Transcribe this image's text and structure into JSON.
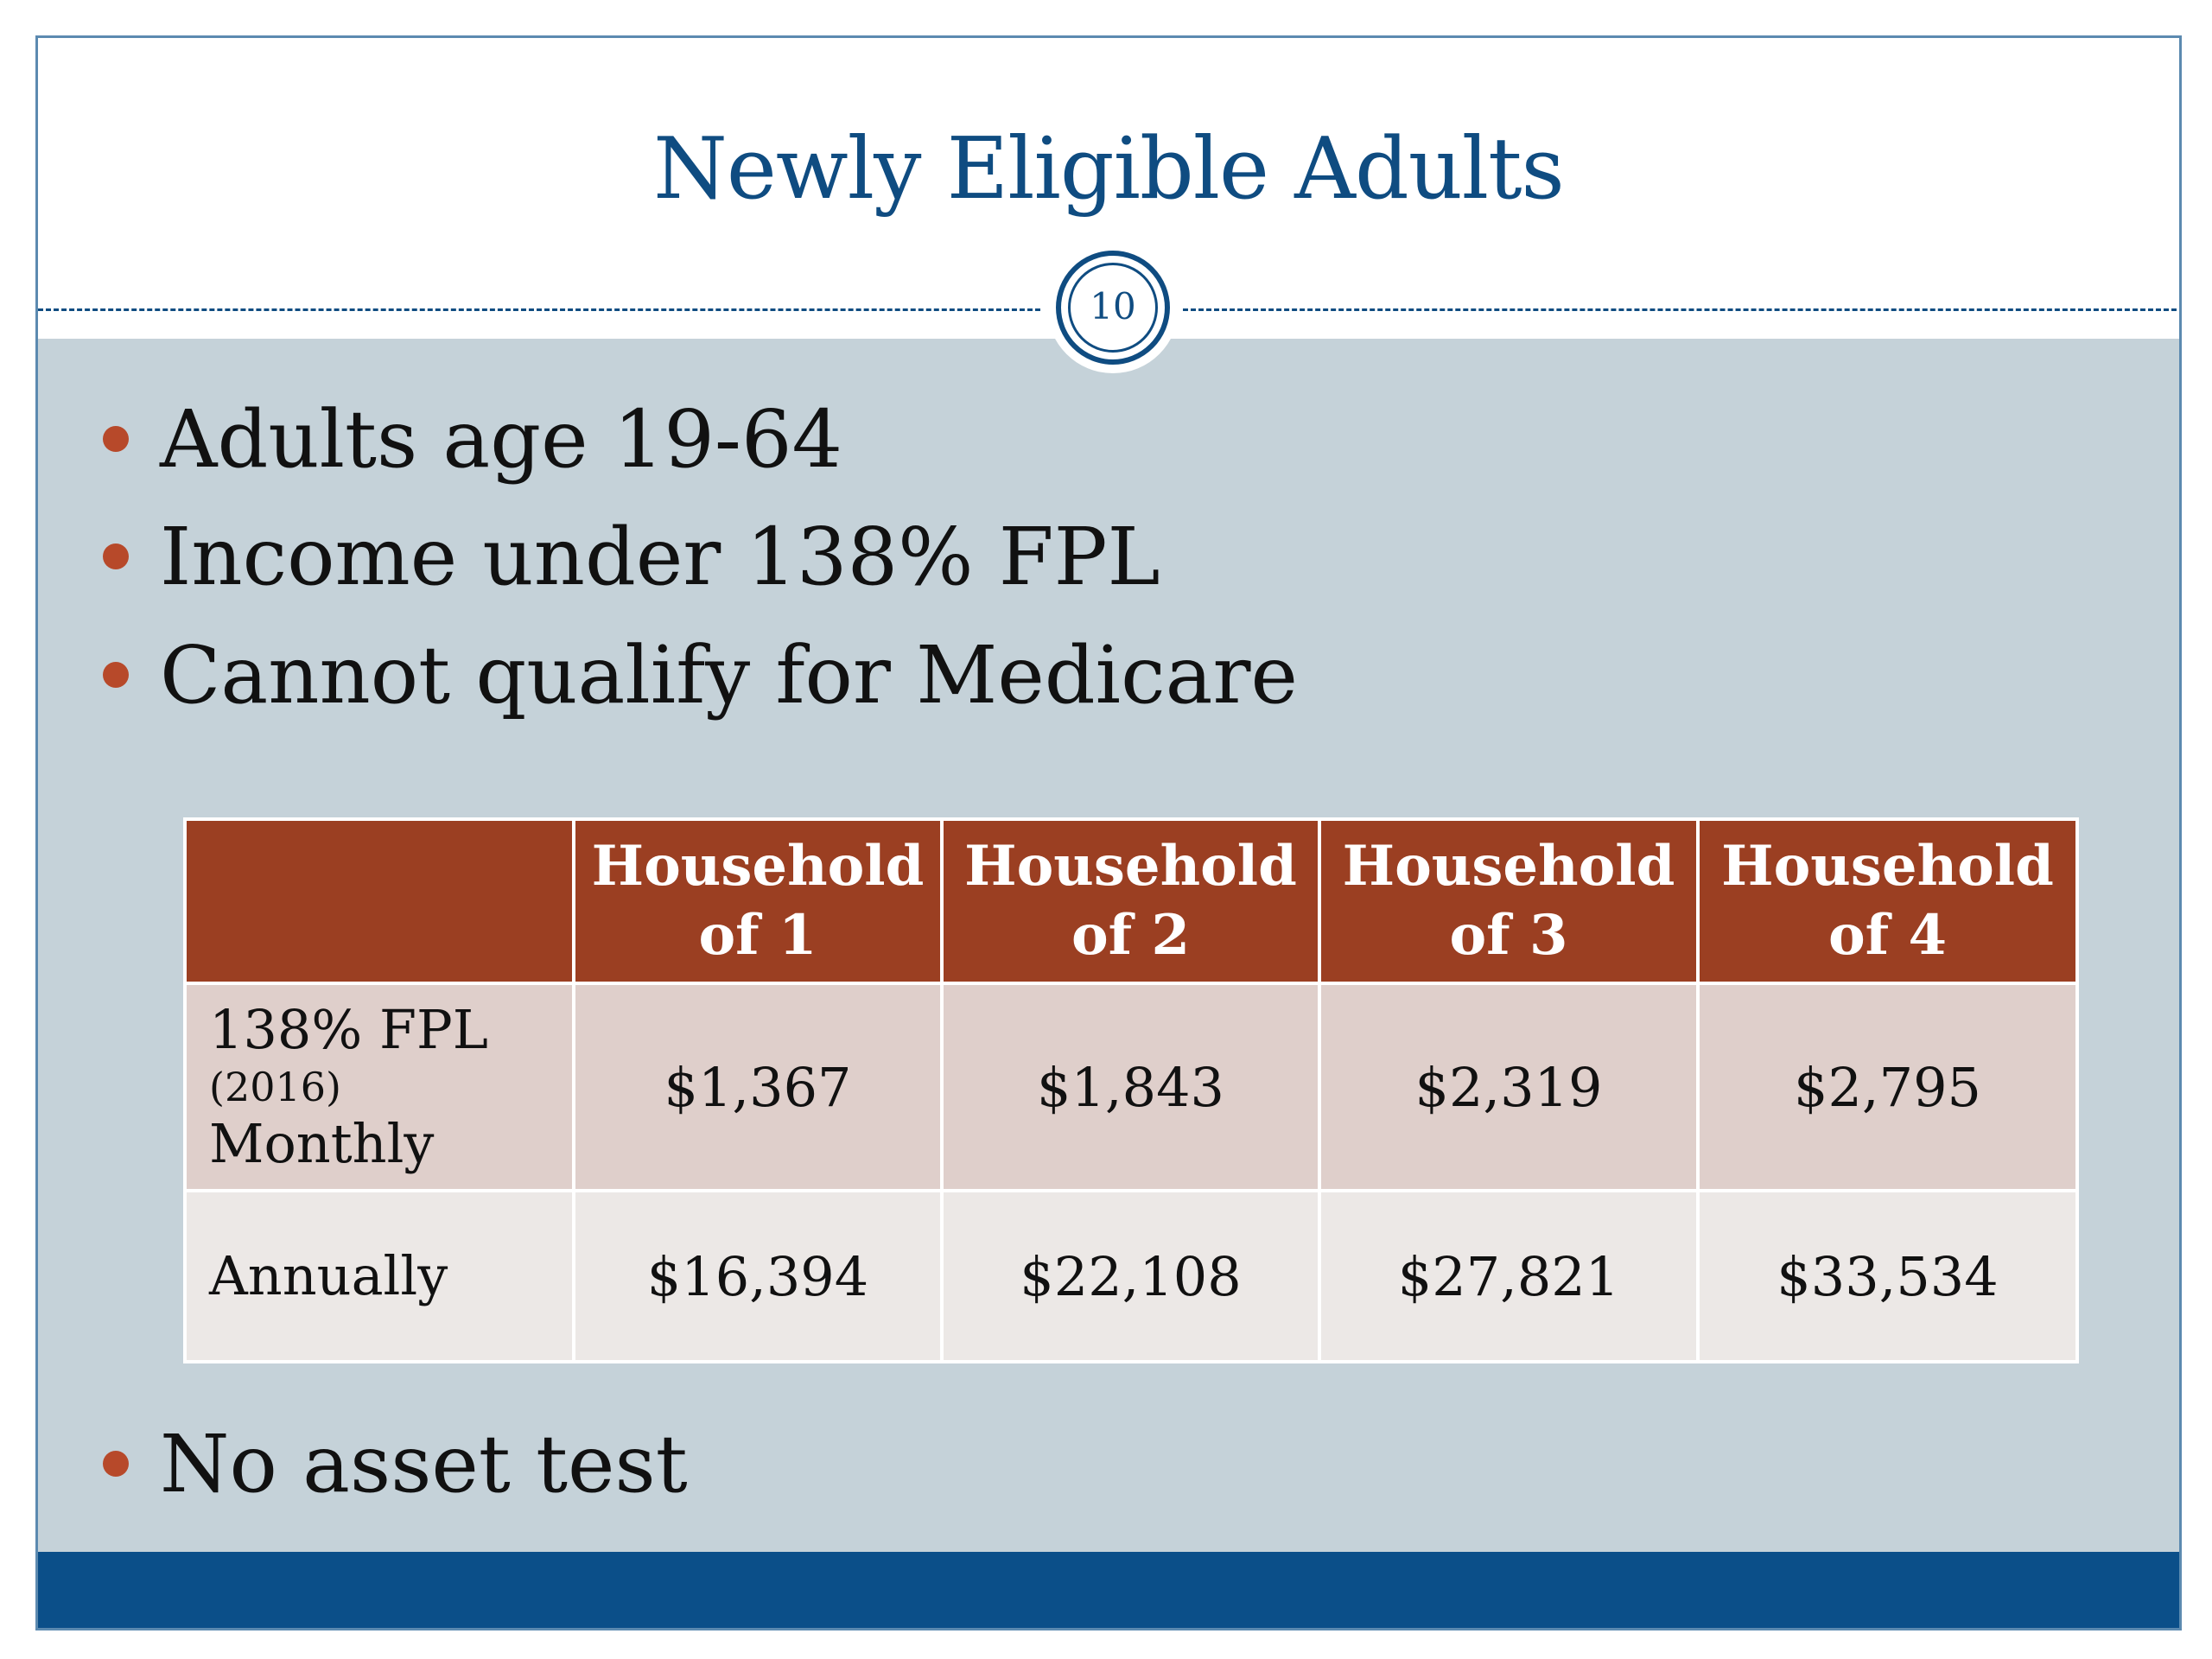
{
  "slide": {
    "title": "Newly Eligible Adults",
    "page_number": "10"
  },
  "bullets": [
    "Adults age 19-64",
    "Income under 138% FPL",
    "Cannot qualify for Medicare",
    "No asset test"
  ],
  "table": {
    "headers": [
      "",
      "Household of 1",
      "Household of 2",
      "Household of 3",
      "Household of 4"
    ],
    "header_lines": [
      [
        "",
        ""
      ],
      [
        "Household",
        "of 1"
      ],
      [
        "Household",
        "of 2"
      ],
      [
        "Household",
        "of 3"
      ],
      [
        "Household",
        "of 4"
      ]
    ],
    "rows": [
      {
        "label_line1": "138% FPL",
        "label_line2": "(2016)",
        "label_line3": "Monthly",
        "values": [
          "$1,367",
          "$1,843",
          "$2,319",
          "$2,795"
        ]
      },
      {
        "label_line1": "Annually",
        "values": [
          "$16,394",
          "$22,108",
          "$27,821",
          "$33,534"
        ]
      }
    ]
  },
  "colors": {
    "title": "#0f4c81",
    "body_background": "#c5d2d9",
    "bullet": "#b7492a",
    "table_header": "#9b3f22",
    "row_monthly": "#dfcfcb",
    "row_annual": "#ece8e6",
    "footer_bar": "#0b4f89"
  }
}
